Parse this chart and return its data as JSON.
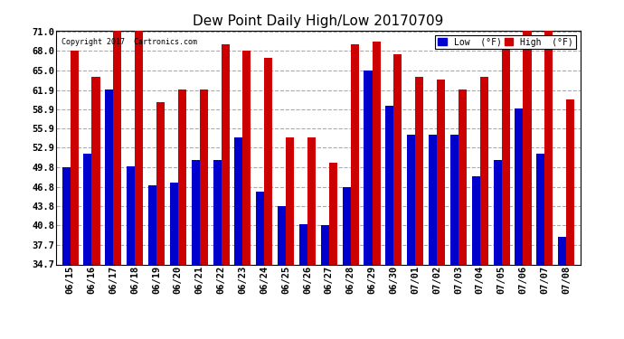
{
  "title": "Dew Point Daily High/Low 20170709",
  "copyright": "Copyright 2017  Cartronics.com",
  "dates": [
    "06/15",
    "06/16",
    "06/17",
    "06/18",
    "06/19",
    "06/20",
    "06/21",
    "06/22",
    "06/23",
    "06/24",
    "06/25",
    "06/26",
    "06/27",
    "06/28",
    "06/29",
    "06/30",
    "07/01",
    "07/02",
    "07/03",
    "07/04",
    "07/05",
    "07/06",
    "07/07",
    "07/08"
  ],
  "low": [
    49.8,
    52.0,
    62.0,
    50.0,
    47.0,
    47.5,
    51.0,
    51.0,
    54.5,
    46.0,
    43.8,
    41.0,
    40.8,
    46.8,
    65.0,
    59.5,
    55.0,
    55.0,
    55.0,
    48.5,
    51.0,
    59.0,
    52.0,
    39.0
  ],
  "high": [
    68.0,
    64.0,
    72.0,
    72.0,
    60.0,
    62.0,
    62.0,
    69.0,
    68.0,
    67.0,
    54.5,
    54.5,
    50.5,
    69.0,
    69.5,
    67.5,
    64.0,
    63.5,
    62.0,
    64.0,
    69.0,
    72.0,
    72.0,
    60.5
  ],
  "low_color": "#0000cc",
  "high_color": "#cc0000",
  "bg_color": "#ffffff",
  "grid_color": "#aaaaaa",
  "yticks": [
    34.7,
    37.7,
    40.8,
    43.8,
    46.8,
    49.8,
    52.9,
    55.9,
    58.9,
    61.9,
    65.0,
    68.0,
    71.0
  ],
  "ymin": 34.7,
  "ymax": 71.0,
  "legend_low_label": "Low  (°F)",
  "legend_high_label": "High  (°F)"
}
